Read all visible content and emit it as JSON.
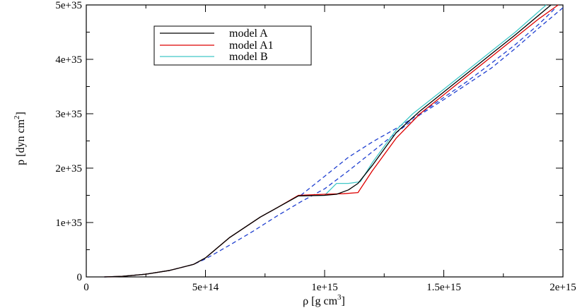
{
  "chart_data": {
    "type": "line",
    "xlabel": {
      "base": "ρ [g cm",
      "sup": "3",
      "close": "]"
    },
    "ylabel": {
      "base": "p [dyn cm",
      "sup": "2",
      "close": "]"
    },
    "xlim": [
      0,
      2000000000000000.0
    ],
    "ylim": [
      0,
      5e+35
    ],
    "x_ticks": [
      {
        "value": 0,
        "label": "0"
      },
      {
        "value": 500000000000000.0,
        "label": "5e+14"
      },
      {
        "value": 1000000000000000.0,
        "label": "1e+15"
      },
      {
        "value": 1500000000000000.0,
        "label": "1.5e+15"
      },
      {
        "value": 2000000000000000.0,
        "label": "2e+15"
      }
    ],
    "y_ticks": [
      {
        "value": 0,
        "label": "0"
      },
      {
        "value": 1e+35,
        "label": "1e+35"
      },
      {
        "value": 2e+35,
        "label": "2e+35"
      },
      {
        "value": 3e+35,
        "label": "3e+35"
      },
      {
        "value": 4e+35,
        "label": "4e+35"
      },
      {
        "value": 5e+35,
        "label": "5e+35"
      }
    ],
    "series": [
      {
        "name": "model A",
        "color": "#000000",
        "dashed": false,
        "x": [
          75000000000000.0,
          150000000000000.0,
          250000000000000.0,
          350000000000000.0,
          450000000000000.0,
          500000000000000.0,
          600000000000000.0,
          730000000000000.0,
          800000000000000.0,
          890000000000000.0,
          1000000000000000.0,
          1050000000000000.0,
          1100000000000000.0,
          1140000000000000.0,
          1200000000000000.0,
          1300000000000000.0,
          1400000000000000.0,
          1500000000000000.0,
          1600000000000000.0,
          1700000000000000.0,
          1800000000000000.0,
          1950000000000000.0
        ],
        "y": [
          0,
          1e+33,
          5e+33,
          1.2e+34,
          2.3e+34,
          3.5e+34,
          7.2e+34,
          1.1e+35,
          1.27e+35,
          1.49e+35,
          1.5e+35,
          1.52e+35,
          1.6e+35,
          1.72e+35,
          2.05e+35,
          2.65e+35,
          3.05e+35,
          3.4e+35,
          3.75e+35,
          4.1e+35,
          4.45e+35,
          5e+35
        ]
      },
      {
        "name": "model A1",
        "color": "#dd0000",
        "dashed": false,
        "x": [
          75000000000000.0,
          150000000000000.0,
          250000000000000.0,
          350000000000000.0,
          450000000000000.0,
          500000000000000.0,
          600000000000000.0,
          730000000000000.0,
          800000000000000.0,
          890000000000000.0,
          1000000000000000.0,
          1080000000000000.0,
          1140000000000000.0,
          1200000000000000.0,
          1300000000000000.0,
          1400000000000000.0,
          1500000000000000.0,
          1600000000000000.0,
          1700000000000000.0,
          1800000000000000.0,
          1900000000000000.0,
          1980000000000000.0
        ],
        "y": [
          0,
          1e+33,
          5e+33,
          1.2e+34,
          2.3e+34,
          3.5e+34,
          7.2e+34,
          1.1e+35,
          1.27e+35,
          1.5e+35,
          1.52e+35,
          1.53e+35,
          1.55e+35,
          1.95e+35,
          2.55e+35,
          3e+35,
          3.35e+35,
          3.7e+35,
          4.05e+35,
          4.4e+35,
          4.75e+35,
          5e+35
        ]
      },
      {
        "name": "model B",
        "color": "#40c8c8",
        "dashed": false,
        "x": [
          75000000000000.0,
          150000000000000.0,
          250000000000000.0,
          350000000000000.0,
          450000000000000.0,
          500000000000000.0,
          600000000000000.0,
          730000000000000.0,
          800000000000000.0,
          890000000000000.0,
          1000000000000000.0,
          1050000000000000.0,
          1100000000000000.0,
          1150000000000000.0,
          1200000000000000.0,
          1300000000000000.0,
          1370000000000000.0,
          1500000000000000.0,
          1600000000000000.0,
          1700000000000000.0,
          1800000000000000.0,
          1930000000000000.0
        ],
        "y": [
          0,
          1e+33,
          5e+33,
          1.2e+34,
          2.3e+34,
          3.5e+34,
          7.2e+34,
          1.1e+35,
          1.27e+35,
          1.49e+35,
          1.5e+35,
          1.72e+35,
          1.72e+35,
          1.75e+35,
          2.1e+35,
          2.7e+35,
          3e+35,
          3.45e+35,
          3.8e+35,
          4.15e+35,
          4.5e+35,
          5e+35
        ]
      },
      {
        "name": "upper-dashed",
        "color": "#1f3fd0",
        "dashed": true,
        "x": [
          900000000000000.0,
          1000000000000000.0,
          1100000000000000.0,
          1200000000000000.0,
          1300000000000000.0,
          1400000000000000.0,
          1500000000000000.0,
          1600000000000000.0,
          1700000000000000.0,
          1800000000000000.0,
          1900000000000000.0,
          1970000000000000.0
        ],
        "y": [
          1.5e+35,
          1.85e+35,
          2.2e+35,
          2.48e+35,
          2.73e+35,
          3e+35,
          3.3e+35,
          3.6e+35,
          3.93e+35,
          4.27e+35,
          4.65e+35,
          4.95e+35
        ]
      },
      {
        "name": "lower-dashed",
        "color": "#1f3fd0",
        "dashed": true,
        "x": [
          75000000000000.0,
          150000000000000.0,
          250000000000000.0,
          350000000000000.0,
          450000000000000.0,
          500000000000000.0,
          600000000000000.0,
          700000000000000.0,
          800000000000000.0,
          900000000000000.0,
          1000000000000000.0,
          1100000000000000.0,
          1200000000000000.0,
          1300000000000000.0,
          1400000000000000.0,
          1500000000000000.0,
          1600000000000000.0,
          1700000000000000.0,
          1800000000000000.0,
          1900000000000000.0,
          2000000000000000.0
        ],
        "y": [
          0,
          1e+33,
          5e+33,
          1.2e+34,
          2.3e+34,
          3.3e+34,
          5.8e+34,
          8.4e+34,
          1.12e+35,
          1.38e+35,
          1.62e+35,
          1.95e+35,
          2.3e+35,
          2.65e+35,
          2.98e+35,
          3.26e+35,
          3.55e+35,
          3.84e+35,
          4.2e+35,
          4.58e+35,
          4.95e+35
        ]
      }
    ],
    "legend": [
      {
        "label": "model A",
        "color": "#000000"
      },
      {
        "label": "model A1",
        "color": "#dd0000"
      },
      {
        "label": "model B",
        "color": "#40c8c8"
      }
    ]
  }
}
